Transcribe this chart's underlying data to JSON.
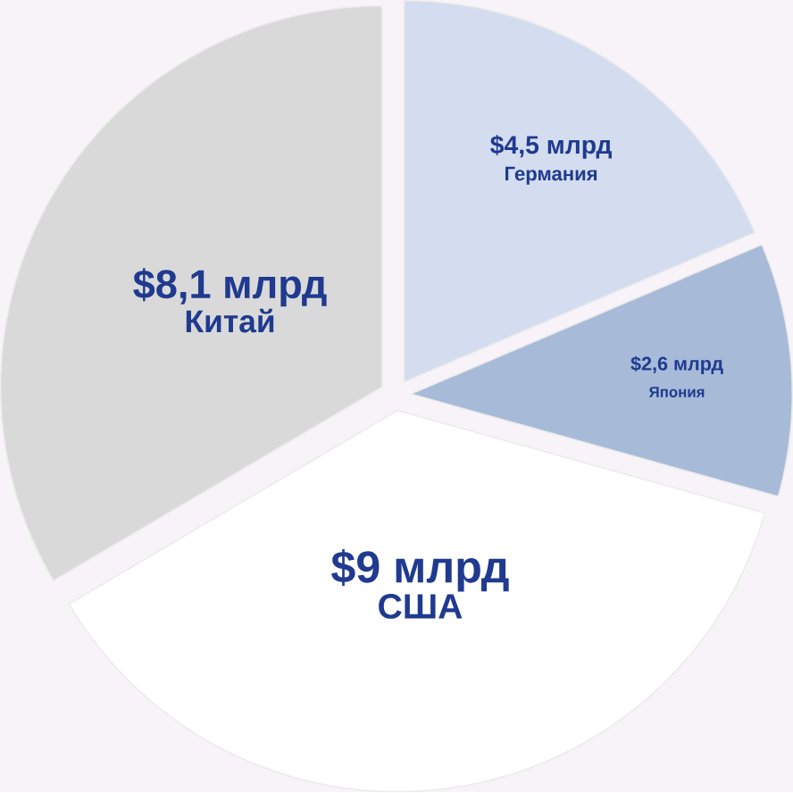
{
  "chart_data": {
    "type": "pie",
    "categories": [
      "Германия",
      "Япония",
      "США",
      "Китай"
    ],
    "values": [
      4.5,
      2.6,
      9,
      8.1
    ],
    "value_labels": [
      "$4,5 млрд",
      "$2,6 млрд",
      "$9 млрд",
      "$8,1 млрд"
    ],
    "colors": [
      "#d3ddef",
      "#a7bbd9",
      "#ffffff",
      "#d9d9d9"
    ]
  }
}
